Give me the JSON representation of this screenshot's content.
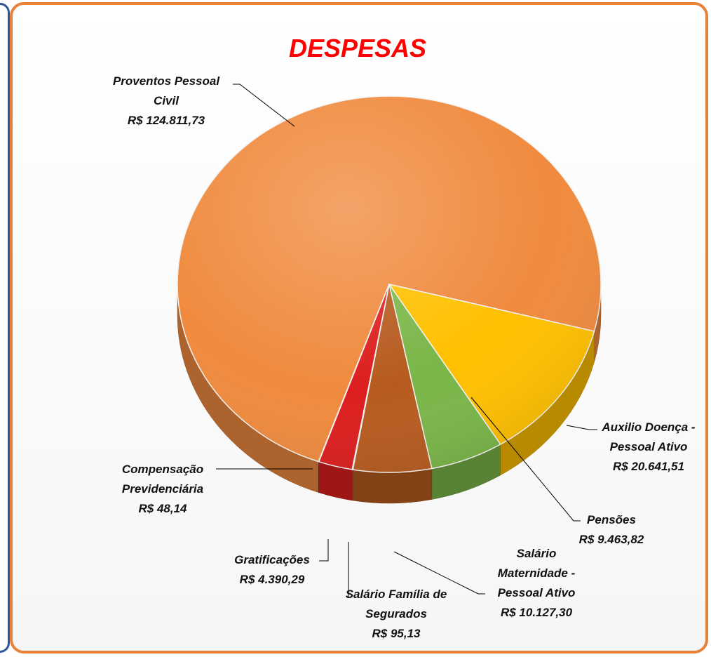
{
  "chart_data": {
    "type": "pie",
    "title": "DESPESAS",
    "categories": [
      "Proventos Pessoal Civil",
      "Auxilio Doença - Pessoal Ativo",
      "Pensões",
      "Salário Maternidade - Pessoal Ativo",
      "Salário Família de Segurados",
      "Gratificações",
      "Compensação Previdenciária"
    ],
    "values": [
      124811.73,
      20641.51,
      9463.82,
      10127.3,
      95.13,
      4390.29,
      48.14
    ],
    "value_labels": [
      "R$ 124.811,73",
      "R$ 20.641,51",
      "R$ 9.463,82",
      "R$ 10.127,30",
      "R$ 95,13",
      "R$ 4.390,29",
      "R$ 48,14"
    ],
    "colors": [
      "#f08a3e",
      "#ffc000",
      "#7ab648",
      "#b65b1f",
      "#c0504d",
      "#dc1e1e",
      "#9a3a2a"
    ]
  }
}
